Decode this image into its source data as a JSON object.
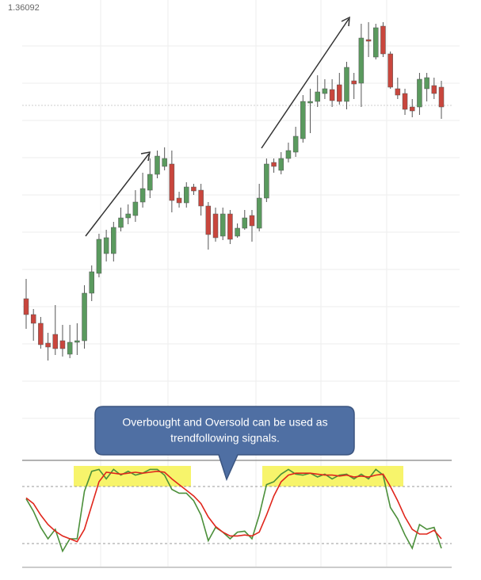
{
  "price_label": "1.36092",
  "callout": [
    "Overbought and Oversold can be used as",
    "trendfollowing signals."
  ],
  "chart_data": [
    {
      "type": "candlestick",
      "ylim": [
        0,
        580
      ],
      "up_color": "#5a9a5e",
      "down_color": "#c9463d",
      "open": [
        203,
        183,
        172,
        147,
        158,
        150,
        133,
        148,
        150,
        210,
        235,
        260,
        260,
        293,
        305,
        308,
        325,
        340,
        360,
        370,
        373,
        330,
        324,
        344,
        340,
        320,
        310,
        282,
        310,
        282,
        292,
        308,
        292,
        330,
        375,
        365,
        380,
        388,
        405,
        450,
        452,
        462,
        467,
        473,
        452,
        478,
        475,
        530,
        508,
        547,
        512,
        468,
        462,
        445,
        445,
        468,
        472,
        470
      ],
      "high": [
        228,
        190,
        180,
        160,
        195,
        170,
        170,
        172,
        220,
        245,
        285,
        290,
        300,
        318,
        322,
        340,
        362,
        380,
        390,
        394,
        390,
        338,
        350,
        348,
        348,
        325,
        318,
        318,
        315,
        298,
        315,
        315,
        348,
        380,
        380,
        388,
        400,
        420,
        460,
        468,
        485,
        480,
        480,
        488,
        502,
        488,
        550,
        552,
        550,
        552,
        515,
        482,
        468,
        455,
        488,
        488,
        482,
        478
      ],
      "low": [
        165,
        150,
        140,
        125,
        132,
        130,
        128,
        132,
        140,
        200,
        230,
        250,
        250,
        288,
        297,
        300,
        318,
        330,
        355,
        365,
        312,
        318,
        318,
        334,
        308,
        265,
        275,
        277,
        272,
        280,
        290,
        275,
        288,
        325,
        362,
        360,
        375,
        382,
        400,
        412,
        445,
        455,
        445,
        448,
        442,
        455,
        445,
        508,
        505,
        508,
        468,
        455,
        435,
        432,
        435,
        452,
        455,
        430
      ],
      "close": [
        183,
        172,
        145,
        142,
        140,
        140,
        148,
        150,
        210,
        237,
        278,
        280,
        293,
        305,
        310,
        325,
        342,
        360,
        383,
        380,
        327,
        324,
        344,
        339,
        320,
        284,
        280,
        310,
        278,
        292,
        305,
        295,
        330,
        373,
        370,
        380,
        390,
        408,
        452,
        452,
        464,
        468,
        453,
        452,
        495,
        474,
        532,
        528,
        545,
        512,
        470,
        460,
        442,
        440,
        480,
        482,
        462,
        445
      ]
    },
    {
      "type": "line",
      "ylim": [
        0,
        100
      ],
      "levels": [
        80,
        20
      ],
      "series": [
        {
          "color": "#4b8f3a",
          "values": [
            67,
            54,
            37,
            25,
            35,
            12,
            25,
            25,
            75,
            96,
            98,
            88,
            98,
            92,
            96,
            92,
            94,
            98,
            98,
            92,
            77,
            73,
            73,
            65,
            50,
            23,
            37,
            32,
            25,
            32,
            33,
            25,
            50,
            82,
            85,
            93,
            98,
            93,
            92,
            94,
            90,
            93,
            88,
            92,
            93,
            88,
            93,
            88,
            98,
            92,
            58,
            46,
            29,
            15,
            40,
            35,
            37,
            15
          ]
        },
        {
          "color": "#e0261c",
          "values": [
            68,
            62,
            50,
            40,
            33,
            28,
            25,
            22,
            35,
            60,
            85,
            95,
            94,
            93,
            94,
            95,
            94,
            95,
            96,
            95,
            88,
            82,
            76,
            70,
            62,
            48,
            38,
            32,
            28,
            28,
            29,
            28,
            32,
            50,
            70,
            85,
            92,
            94,
            94,
            94,
            93,
            92,
            92,
            91,
            92,
            90,
            91,
            90,
            92,
            93,
            80,
            65,
            48,
            35,
            30,
            30,
            34,
            25
          ]
        }
      ]
    }
  ]
}
